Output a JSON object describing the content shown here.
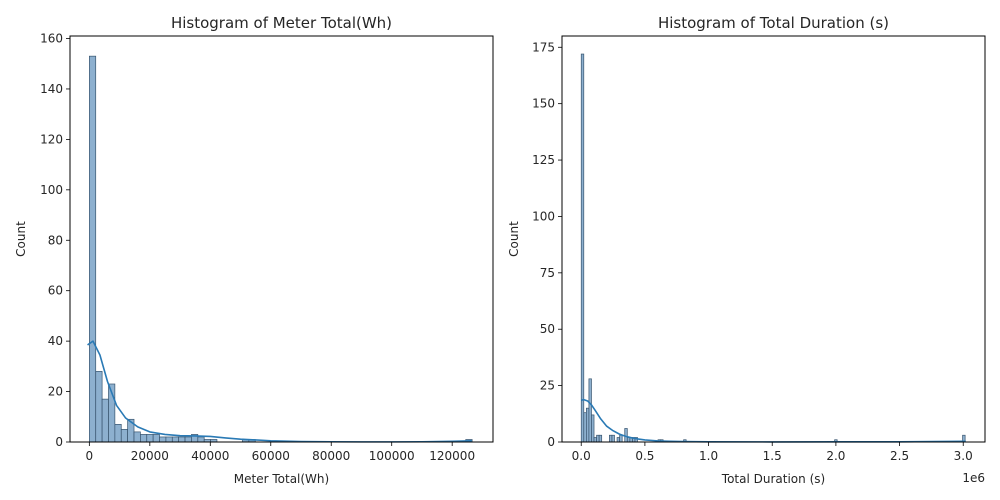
{
  "chart_data": [
    {
      "type": "histogram",
      "title": "Histogram of Meter Total(Wh)",
      "xlabel": "Meter Total(Wh)",
      "ylabel": "Count",
      "xlim": [
        -6400,
        133500
      ],
      "ylim": [
        0,
        161
      ],
      "xticks": [
        0,
        20000,
        40000,
        60000,
        80000,
        100000,
        120000
      ],
      "xtick_labels": [
        "0",
        "20000",
        "40000",
        "60000",
        "80000",
        "100000",
        "120000"
      ],
      "yticks": [
        0,
        20,
        40,
        60,
        80,
        100,
        120,
        140,
        160
      ],
      "ytick_labels": [
        "0",
        "20",
        "40",
        "60",
        "80",
        "100",
        "120",
        "140",
        "160"
      ],
      "bin_width": 2110,
      "bin_start": 0,
      "counts": [
        153,
        28,
        17,
        23,
        7,
        5,
        9,
        4,
        3,
        3,
        3,
        2,
        2,
        2,
        2,
        2,
        3,
        2,
        1,
        1,
        0,
        0,
        0,
        0,
        1,
        1,
        0,
        0,
        0,
        0,
        0,
        0,
        0,
        0,
        0,
        0,
        0,
        0,
        0,
        0,
        0,
        0,
        0,
        0,
        0,
        0,
        0,
        0,
        0,
        0,
        0,
        0,
        0,
        0,
        0,
        0,
        0,
        0,
        0,
        1
      ],
      "kde": {
        "x": [
          -600,
          1200,
          3500,
          6000,
          9000,
          12000,
          16000,
          20000,
          25000,
          30000,
          35000,
          40000,
          45000,
          50000,
          55000,
          60000,
          70000,
          80000,
          90000,
          100000,
          110000,
          120000,
          126500
        ],
        "y": [
          38.5,
          40,
          34.5,
          24,
          14.5,
          9.5,
          6,
          4,
          3,
          2.5,
          2.4,
          2.2,
          1.6,
          1.1,
          0.8,
          0.5,
          0.2,
          0.1,
          0.05,
          0.05,
          0.1,
          0.3,
          0.5
        ]
      },
      "colors": {
        "bar_fill": "#8db0cf",
        "bar_edge": "#38546e",
        "kde": "#2a7ab5"
      }
    },
    {
      "type": "histogram",
      "title": "Histogram of Total Duration (s)",
      "xlabel": "Total Duration (s)",
      "ylabel": "Count",
      "offset_label": "1e6",
      "xlim": [
        -151000,
        3171000
      ],
      "ylim": [
        0,
        180
      ],
      "xticks": [
        0,
        500000,
        1000000,
        1500000,
        2000000,
        2500000,
        3000000
      ],
      "xtick_labels": [
        "0.0",
        "0.5",
        "1.0",
        "1.5",
        "2.0",
        "2.5",
        "3.0"
      ],
      "yticks": [
        0,
        25,
        50,
        75,
        100,
        125,
        150,
        175
      ],
      "ytick_labels": [
        "0",
        "25",
        "50",
        "75",
        "100",
        "125",
        "150",
        "175"
      ],
      "bin_width": 20100,
      "bin_start": 0,
      "counts": [
        172,
        13,
        15,
        28,
        12,
        2,
        3,
        3,
        0,
        0,
        0,
        3,
        3,
        0,
        2,
        3,
        0,
        6,
        2,
        2,
        2,
        2,
        0,
        0,
        0,
        0,
        0,
        0,
        0,
        0,
        1,
        1,
        0,
        0,
        0,
        0,
        0,
        0,
        0,
        0,
        1,
        0,
        0,
        0,
        0,
        0,
        0,
        0,
        0,
        0,
        0,
        0,
        0,
        0,
        0,
        0,
        0,
        0,
        0,
        0,
        0,
        0,
        0,
        0,
        0,
        0,
        0,
        0,
        0,
        0,
        0,
        0,
        0,
        0,
        0,
        0,
        0,
        0,
        0,
        0,
        0,
        0,
        0,
        0,
        0,
        0,
        0,
        0,
        0,
        0,
        0,
        0,
        0,
        0,
        0,
        0,
        0,
        0,
        0,
        1,
        0,
        0,
        0,
        0,
        0,
        0,
        0,
        0,
        0,
        0,
        0,
        0,
        0,
        0,
        0,
        0,
        0,
        0,
        0,
        0,
        0,
        0,
        0,
        0,
        0,
        0,
        0,
        0,
        0,
        0,
        0,
        0,
        0,
        0,
        0,
        0,
        0,
        0,
        0,
        0,
        0,
        0,
        0,
        0,
        0,
        0,
        0,
        0,
        0,
        3
      ],
      "kde": {
        "x": [
          0,
          20000,
          50000,
          80000,
          110000,
          150000,
          200000,
          250000,
          300000,
          350000,
          400000,
          450000,
          500000,
          600000,
          700000,
          800000,
          1000000,
          1500000,
          2000000,
          2500000,
          3000000,
          3020000
        ],
        "y": [
          18.5,
          18.8,
          18.2,
          16.5,
          14,
          10.5,
          7,
          5,
          3.5,
          2.5,
          1.8,
          1.3,
          0.9,
          0.5,
          0.3,
          0.2,
          0.1,
          0.05,
          0.1,
          0.1,
          0.3,
          0.3
        ]
      },
      "colors": {
        "bar_fill": "#8db0cf",
        "bar_edge": "#38546e",
        "kde": "#2a7ab5"
      }
    }
  ]
}
